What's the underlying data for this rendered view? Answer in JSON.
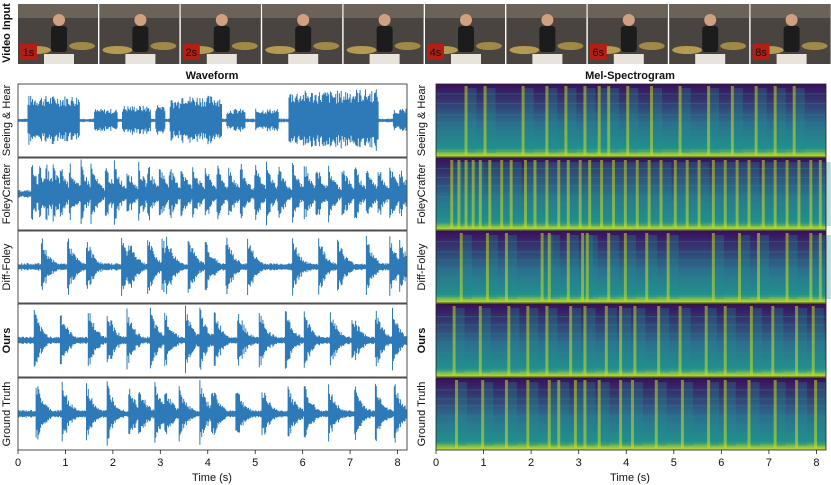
{
  "video_strip": {
    "label": "Video Input",
    "frames": 10,
    "time_badges": [
      {
        "frame": 0,
        "text": "1s"
      },
      {
        "frame": 2,
        "text": "2s"
      },
      {
        "frame": 5,
        "text": "4s"
      },
      {
        "frame": 7,
        "text": "6s"
      },
      {
        "frame": 9,
        "text": "8s"
      }
    ]
  },
  "panels": {
    "waveform_title": "Waveform",
    "spectrogram_title": "Mel-Spectrogram",
    "xlabel": "Time (s)"
  },
  "rows": [
    {
      "label": "Seeing & Hear",
      "bold": false
    },
    {
      "label": "FoleyCrafter",
      "bold": false
    },
    {
      "label": "Diff-Foley",
      "bold": false
    },
    {
      "label": "Ours",
      "bold": true
    },
    {
      "label": "Ground Truth",
      "bold": false
    }
  ],
  "colors": {
    "waveform": "#2e7ab8",
    "spec_low": "#3b0f5c",
    "spec_mid": "#21908d",
    "spec_high": "#c8e020",
    "badge_bg": "#b41e14",
    "badge_text": "#f2d15a"
  },
  "chart_data": [
    {
      "type": "line",
      "title": "Waveform",
      "xlabel": "Time (s)",
      "ylabel": "",
      "xlim": [
        0,
        8.2
      ],
      "xticks": [
        0,
        1,
        2,
        3,
        4,
        5,
        6,
        7,
        8
      ],
      "series": [
        {
          "name": "Seeing & Hear",
          "segments": [
            [
              0.2,
              1.3,
              0.75
            ],
            [
              1.6,
              2.1,
              0.35
            ],
            [
              2.2,
              2.8,
              0.45
            ],
            [
              2.9,
              3.1,
              0.5
            ],
            [
              3.2,
              3.4,
              0.65
            ],
            [
              3.4,
              3.6,
              0.85
            ],
            [
              3.6,
              4.3,
              0.75
            ],
            [
              4.4,
              4.8,
              0.35
            ],
            [
              5.0,
              5.5,
              0.35
            ],
            [
              5.7,
              6.9,
              0.9
            ],
            [
              6.9,
              7.6,
              0.95
            ],
            [
              7.9,
              8.2,
              0.35
            ]
          ],
          "amplitude_axis": [
            -1,
            1
          ]
        },
        {
          "name": "FoleyCrafter",
          "onsets": [
            0.3,
            0.45,
            0.6,
            0.75,
            0.9,
            1.1,
            1.35,
            1.55,
            1.85,
            2.05,
            2.3,
            2.55,
            2.75,
            3.0,
            3.2,
            3.45,
            3.7,
            3.95,
            4.2,
            4.45,
            4.7,
            5.0,
            5.25,
            5.5,
            5.8,
            6.05,
            6.3,
            6.55,
            6.85,
            7.1,
            7.35,
            7.6,
            7.85,
            8.05
          ],
          "amplitude_axis": [
            -1,
            1
          ]
        },
        {
          "name": "Diff-Foley",
          "onsets": [
            0.5,
            1.05,
            1.45,
            2.2,
            2.35,
            2.75,
            3.05,
            3.15,
            3.6,
            3.95,
            4.4,
            4.85,
            5.8,
            6.35,
            6.75,
            7.35,
            7.85,
            8.05
          ],
          "amplitude_axis": [
            -1,
            1
          ]
        },
        {
          "name": "Ours",
          "onsets": [
            0.35,
            0.9,
            1.5,
            1.9,
            2.3,
            2.8,
            3.1,
            3.55,
            3.85,
            4.15,
            4.65,
            5.1,
            5.65,
            6.05,
            6.6,
            7.05,
            7.55,
            7.9
          ],
          "amplitude_axis": [
            -1,
            1
          ]
        },
        {
          "name": "Ground Truth",
          "onsets": [
            0.4,
            0.95,
            1.45,
            1.9,
            2.35,
            2.55,
            2.9,
            3.1,
            3.4,
            3.85,
            4.1,
            4.6,
            5.15,
            5.7,
            6.05,
            6.55,
            7.1,
            7.55,
            7.95
          ],
          "amplitude_axis": [
            -1,
            1
          ]
        }
      ]
    },
    {
      "type": "heatmap",
      "title": "Mel-Spectrogram",
      "xlabel": "Time (s)",
      "ylabel": "",
      "xlim": [
        0,
        8.2
      ],
      "xticks": [
        0,
        1,
        2,
        3,
        4,
        5,
        6,
        7,
        8
      ],
      "colormap": "viridis",
      "series": [
        {
          "name": "Seeing & Hear",
          "onsets": [
            0.6,
            1.0,
            1.8,
            2.3,
            2.7,
            3.1,
            3.4,
            3.6,
            4.0,
            4.5,
            5.1,
            5.7,
            6.2,
            6.7,
            7.1,
            7.5
          ]
        },
        {
          "name": "FoleyCrafter",
          "onsets": [
            0.3,
            0.45,
            0.6,
            0.75,
            0.9,
            1.1,
            1.35,
            1.55,
            1.85,
            2.05,
            2.3,
            2.55,
            2.75,
            3.0,
            3.2,
            3.45,
            3.7,
            3.95,
            4.2,
            4.45,
            4.7,
            5.0,
            5.25,
            5.5,
            5.8,
            6.05,
            6.3,
            6.55,
            6.85,
            7.1,
            7.35,
            7.6,
            7.85,
            8.05
          ]
        },
        {
          "name": "Diff-Foley",
          "onsets": [
            0.5,
            1.05,
            1.45,
            2.2,
            2.35,
            2.75,
            3.05,
            3.15,
            3.6,
            3.95,
            4.4,
            4.85,
            5.8,
            6.35,
            6.75,
            7.35,
            7.85,
            8.05
          ]
        },
        {
          "name": "Ours",
          "onsets": [
            0.35,
            0.9,
            1.5,
            1.9,
            2.3,
            2.8,
            3.1,
            3.55,
            3.85,
            4.15,
            4.65,
            5.1,
            5.65,
            6.05,
            6.6,
            7.05,
            7.55,
            7.9
          ]
        },
        {
          "name": "Ground Truth",
          "onsets": [
            0.4,
            0.95,
            1.45,
            1.9,
            2.35,
            2.55,
            2.9,
            3.1,
            3.4,
            3.85,
            4.1,
            4.6,
            5.15,
            5.7,
            6.05,
            6.55,
            7.1,
            7.55,
            7.95
          ]
        }
      ]
    }
  ]
}
